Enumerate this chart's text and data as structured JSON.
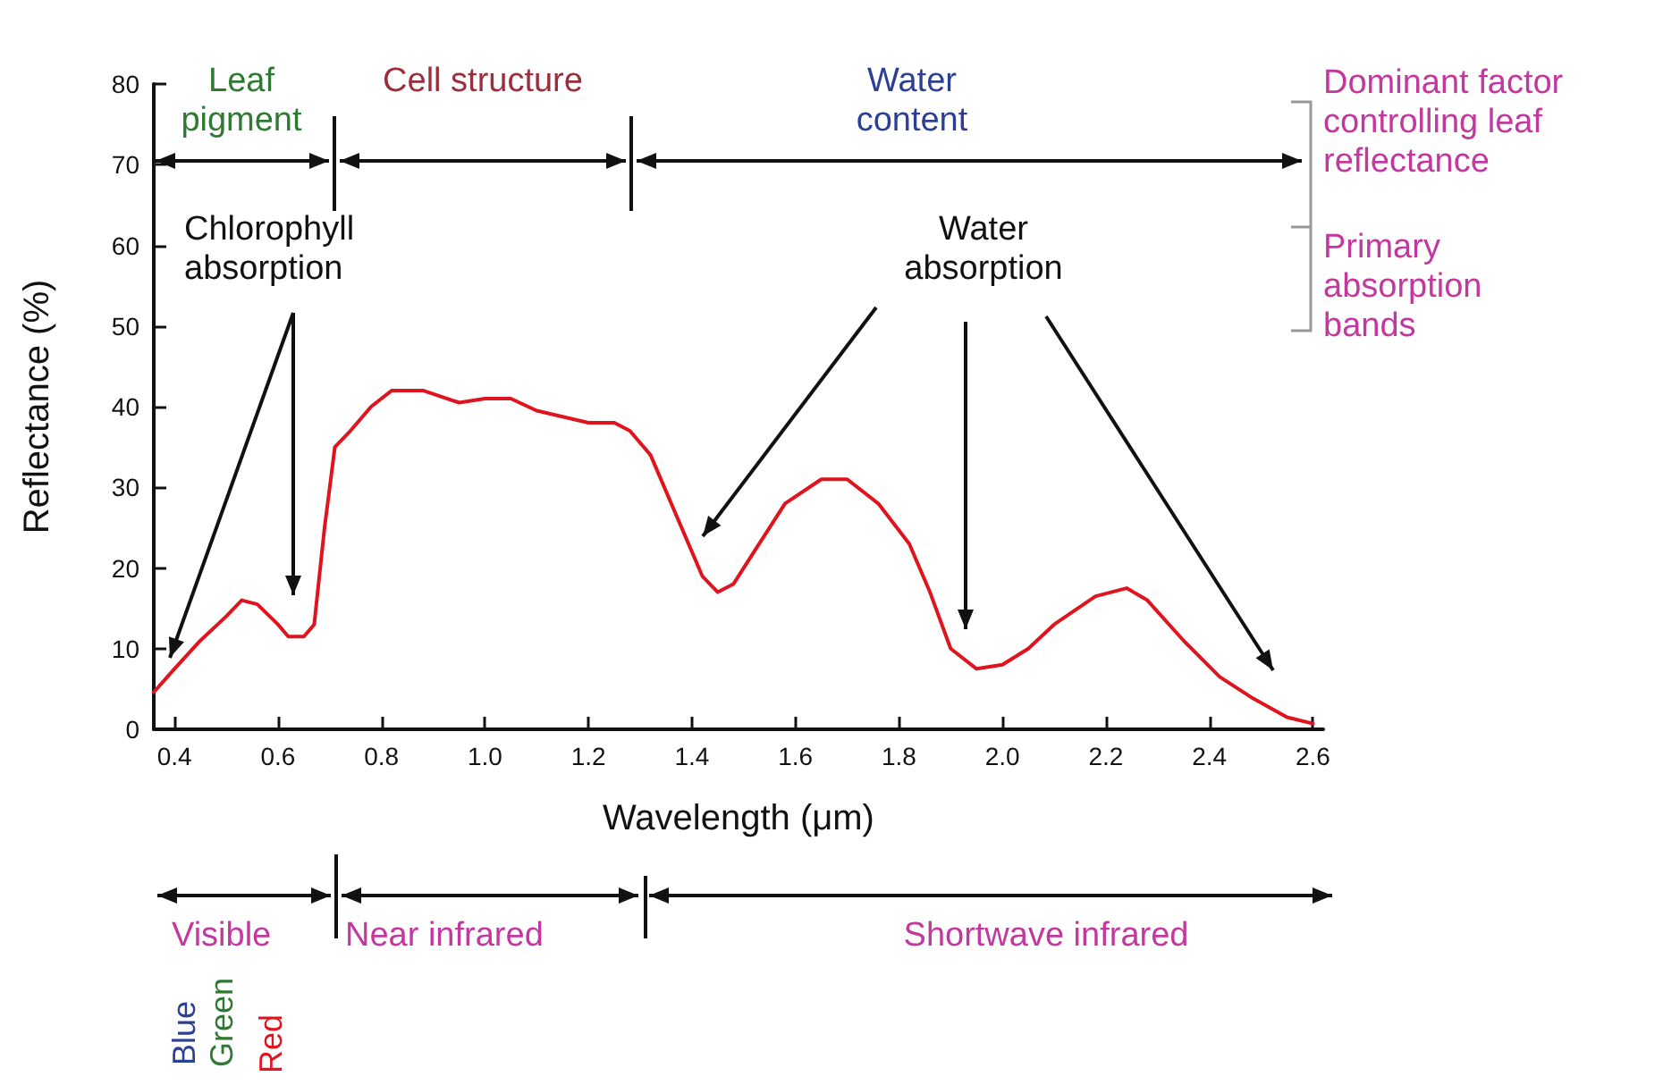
{
  "chart_data": {
    "type": "line",
    "xlabel": "Wavelength (μm)",
    "ylabel": "Reflectance (%)",
    "x": [
      0.36,
      0.4,
      0.45,
      0.5,
      0.53,
      0.56,
      0.6,
      0.62,
      0.65,
      0.67,
      0.69,
      0.71,
      0.74,
      0.78,
      0.82,
      0.88,
      0.95,
      1.0,
      1.05,
      1.1,
      1.2,
      1.25,
      1.28,
      1.32,
      1.38,
      1.42,
      1.45,
      1.48,
      1.52,
      1.58,
      1.65,
      1.7,
      1.76,
      1.82,
      1.86,
      1.9,
      1.95,
      2.0,
      2.05,
      2.1,
      2.18,
      2.24,
      2.28,
      2.35,
      2.42,
      2.48,
      2.55,
      2.6
    ],
    "series": [
      {
        "color": "#e0141e",
        "values": [
          4.6,
          7.5,
          11,
          14,
          16,
          15.5,
          13,
          11.5,
          11.5,
          13,
          25,
          35,
          37,
          40,
          42,
          42,
          40.5,
          41,
          41,
          39.5,
          38,
          38,
          37,
          34,
          25,
          19,
          17,
          18,
          22,
          28,
          31,
          31,
          28,
          23,
          17,
          10,
          7.5,
          8,
          10,
          13,
          16.5,
          17.5,
          16,
          11,
          6.5,
          4,
          1.5,
          0.7
        ]
      }
    ],
    "xlim": [
      0.36,
      2.62
    ],
    "xticks": [
      0.4,
      0.6,
      0.8,
      {
        "value": 1,
        "label": "1.0"
      },
      1.2,
      1.4,
      1.6,
      1.8,
      {
        "value": 2,
        "label": "2.0"
      },
      2.2,
      2.4,
      2.6
    ],
    "ylim": [
      0,
      80
    ],
    "yticks": [
      0,
      10,
      20,
      30,
      40,
      50,
      60,
      70,
      80
    ],
    "grid": false,
    "marker": "none",
    "line_style": "solid",
    "annotations": [
      "Leaf pigment",
      "Cell structure",
      "Water content",
      "Dominant factor controlling leaf reflectance",
      "Primary absorption bands",
      "Chlorophyll absorption",
      "Water absorption",
      "Visible",
      "Near infrared",
      "Shortwave infrared",
      "Blue",
      "Green",
      "Red"
    ]
  }
}
